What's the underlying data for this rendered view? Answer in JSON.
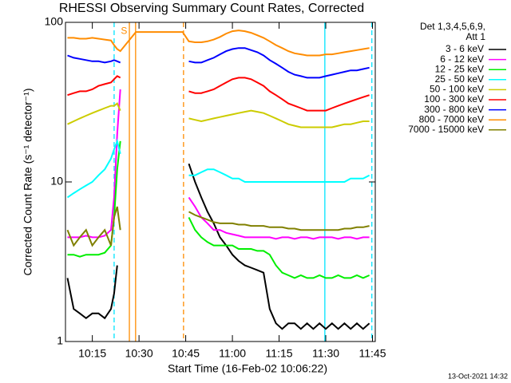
{
  "chart_data": {
    "type": "line",
    "title": "RHESSI Observing Summary Count Rates, Corrected",
    "xlabel": "Start Time (16-Feb-02 10:06:22)",
    "ylabel": "Corrected Count Rate (s⁻¹ detector⁻¹)",
    "legend_title": [
      "Det 1,3,4,5,6,9,",
      "Att 1"
    ],
    "timestamp": "13-Oct-2021 14:32",
    "annotations": [
      {
        "text": "S",
        "x": 25.2,
        "y": 88,
        "color": "#ff8c00"
      }
    ],
    "log_y": true,
    "xlim": [
      6.37,
      105.9
    ],
    "ylim": [
      1,
      100
    ],
    "yticks": [
      1,
      10,
      100
    ],
    "xticks": [
      {
        "value": 15,
        "label": "10:15"
      },
      {
        "value": 30,
        "label": "10:30"
      },
      {
        "value": 45,
        "label": "10:45"
      },
      {
        "value": 60,
        "label": "11:00"
      },
      {
        "value": 75,
        "label": "11:15"
      },
      {
        "value": 90,
        "label": "11:30"
      },
      {
        "value": 105,
        "label": "11:45"
      }
    ],
    "vlines": [
      {
        "x": 22.0,
        "color": "#00e5ff",
        "dashed": true
      },
      {
        "x": 26.9,
        "color": "#ff8c00",
        "dashed": false
      },
      {
        "x": 28.9,
        "color": "#ff8c00",
        "dashed": false
      },
      {
        "x": 44.3,
        "color": "#ff8c00",
        "dashed": true
      },
      {
        "x": 89.7,
        "color": "#00e5ff",
        "dashed": false
      },
      {
        "x": 104.8,
        "color": "#00e5ff",
        "dashed": true
      }
    ],
    "x": [
      7,
      9,
      11,
      13,
      15,
      17,
      19,
      21,
      22,
      23,
      24,
      29,
      44,
      46,
      48,
      50,
      52,
      54,
      56,
      58,
      60,
      62,
      64,
      66,
      68,
      70,
      72,
      74,
      76,
      78,
      80,
      82,
      84,
      86,
      88,
      90,
      92,
      94,
      96,
      98,
      100,
      102,
      104
    ],
    "series": [
      {
        "name": "3 - 6 keV",
        "color": "#000000",
        "values": [
          2.5,
          1.6,
          1.5,
          1.4,
          1.5,
          1.5,
          1.4,
          1.6,
          2,
          3,
          null,
          null,
          null,
          13,
          10,
          8,
          6.5,
          5.5,
          4.5,
          4,
          3.5,
          3.2,
          3,
          2.9,
          2.8,
          2.7,
          1.6,
          1.3,
          1.2,
          1.3,
          1.3,
          1.2,
          1.3,
          1.2,
          1.3,
          1.2,
          1.3,
          1.2,
          1.3,
          1.2,
          1.3,
          1.2,
          1.3
        ]
      },
      {
        "name": "6 - 12 keV",
        "color": "#ff00ff",
        "values": [
          4.5,
          4.5,
          4.5,
          4.6,
          4.5,
          4.5,
          4.6,
          5,
          8,
          20,
          38,
          null,
          null,
          8,
          7,
          6,
          5.5,
          5,
          5,
          4.8,
          4.7,
          4.6,
          4.5,
          4.5,
          4.5,
          4.5,
          4.5,
          4.4,
          4.5,
          4.5,
          4.4,
          4.5,
          4.5,
          4.4,
          4.5,
          4.5,
          4.5,
          4.4,
          4.5,
          4.5,
          4.4,
          4.5,
          4.5
        ]
      },
      {
        "name": "12 - 25 keV",
        "color": "#00ee00",
        "values": [
          3.5,
          3.5,
          3.4,
          3.5,
          3.5,
          3.5,
          3.6,
          4,
          6,
          12,
          18,
          null,
          null,
          6,
          5,
          4.5,
          4.2,
          4,
          4,
          4,
          4,
          3.8,
          3.8,
          3.8,
          3.7,
          3.7,
          3.5,
          3,
          2.7,
          2.6,
          2.5,
          2.6,
          2.5,
          2.5,
          2.6,
          2.5,
          2.5,
          2.6,
          2.5,
          2.5,
          2.6,
          2.5,
          2.6
        ]
      },
      {
        "name": "25 - 50 keV",
        "color": "#00ffff",
        "values": [
          8,
          8.5,
          9,
          9.5,
          10,
          11,
          12,
          14,
          16,
          18,
          15,
          null,
          null,
          11,
          11,
          11.5,
          12,
          12,
          11.5,
          11,
          10.5,
          10.5,
          10,
          10,
          10,
          10,
          10,
          10,
          10,
          10,
          10,
          10,
          10,
          10,
          10,
          10,
          10,
          10,
          10,
          10.5,
          10.5,
          10.5,
          11
        ]
      },
      {
        "name": "50 - 100 keV",
        "color": "#cccc00",
        "values": [
          23,
          24,
          25,
          26,
          27,
          28,
          29,
          30,
          30,
          31,
          28,
          null,
          null,
          25,
          24.5,
          24,
          24.5,
          25,
          25.5,
          26,
          26.5,
          27,
          27.5,
          28,
          27.5,
          27,
          26,
          25,
          24,
          23,
          22.5,
          22,
          22,
          22,
          22,
          22,
          22,
          22.5,
          23,
          23,
          23.5,
          24,
          24
        ]
      },
      {
        "name": "100 - 300 keV",
        "color": "#ff0000",
        "values": [
          35,
          36,
          37,
          37,
          38,
          40,
          41,
          42,
          44,
          46,
          45,
          null,
          null,
          37,
          36,
          36,
          37,
          38,
          40,
          42,
          44,
          45,
          45,
          44,
          42,
          40,
          37,
          35,
          33,
          31,
          30,
          29,
          28,
          28,
          28,
          28,
          29,
          30,
          31,
          32,
          33,
          34,
          35
        ]
      },
      {
        "name": "300 - 800 keV",
        "color": "#0000ff",
        "values": [
          62,
          60,
          59,
          58,
          57,
          57,
          56,
          57,
          58,
          57,
          56,
          null,
          null,
          57,
          56,
          56,
          58,
          60,
          63,
          66,
          68,
          69,
          69,
          67,
          65,
          62,
          58,
          55,
          52,
          49,
          47,
          46,
          45,
          45,
          45,
          46,
          47,
          48,
          49,
          50,
          50,
          51,
          52
        ]
      },
      {
        "name": "800 - 7000 keV",
        "color": "#ff8c00",
        "values": [
          80,
          80,
          79,
          79,
          80,
          79,
          78,
          77,
          72,
          68,
          66,
          87,
          87,
          76,
          75,
          75,
          76,
          78,
          81,
          85,
          88,
          89,
          88,
          86,
          83,
          80,
          76,
          72,
          69,
          66,
          64,
          63,
          62,
          62,
          62,
          63,
          63,
          64,
          65,
          66,
          67,
          68,
          69
        ]
      },
      {
        "name": "7000 - 15000 keV",
        "color": "#808000",
        "values": [
          5,
          4,
          4.5,
          5,
          4,
          4.5,
          5,
          4,
          6,
          7,
          5,
          null,
          null,
          6.5,
          6.2,
          6,
          5.8,
          5.6,
          5.5,
          5.5,
          5.5,
          5.4,
          5.4,
          5.3,
          5.3,
          5.3,
          5.2,
          5.2,
          5.2,
          5.1,
          5.1,
          5,
          5,
          5,
          5,
          5,
          5,
          5,
          5.1,
          5.1,
          5.2,
          5.2,
          5.3
        ]
      }
    ]
  }
}
